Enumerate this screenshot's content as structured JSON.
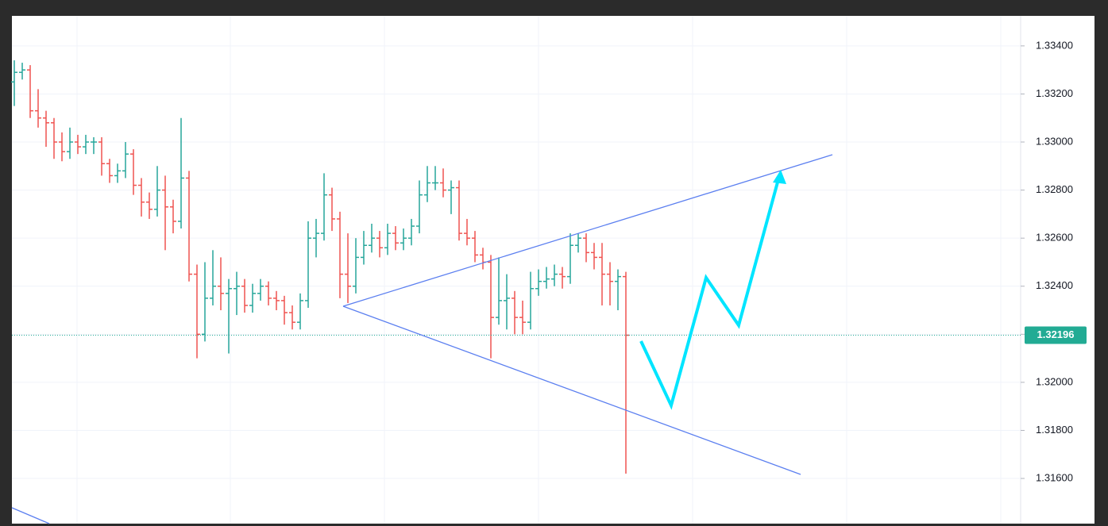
{
  "chart_data": {
    "type": "ohlc",
    "up_color": "#26a69a",
    "down_color": "#ef5350",
    "ylim": [
      1.31412,
      1.33525
    ],
    "yticks": [
      {
        "value": 1.316,
        "label": "1.31600"
      },
      {
        "value": 1.318,
        "label": "1.31800"
      },
      {
        "value": 1.32,
        "label": "1.32000"
      },
      {
        "value": 1.322,
        "label": "1.32200"
      },
      {
        "value": 1.324,
        "label": "1.32400"
      },
      {
        "value": 1.326,
        "label": "1.32600"
      },
      {
        "value": 1.328,
        "label": "1.32800"
      },
      {
        "value": 1.33,
        "label": "1.33000"
      },
      {
        "value": 1.332,
        "label": "1.33200"
      },
      {
        "value": 1.334,
        "label": "1.33400"
      }
    ],
    "grid": true,
    "last_price": 1.32196,
    "ohlc": [
      [
        1.3325,
        1.3334,
        1.3315,
        1.3329
      ],
      [
        1.3329,
        1.3333,
        1.3326,
        1.333
      ],
      [
        1.333,
        1.3332,
        1.331,
        1.3313
      ],
      [
        1.3313,
        1.3322,
        1.3306,
        1.331
      ],
      [
        1.331,
        1.3313,
        1.3298,
        1.3308
      ],
      [
        1.3308,
        1.331,
        1.3293,
        1.33
      ],
      [
        1.33,
        1.3304,
        1.3292,
        1.3296
      ],
      [
        1.3296,
        1.3306,
        1.3293,
        1.33
      ],
      [
        1.33,
        1.3303,
        1.3295,
        1.3298
      ],
      [
        1.3298,
        1.3303,
        1.3295,
        1.33
      ],
      [
        1.33,
        1.3302,
        1.3295,
        1.33
      ],
      [
        1.33,
        1.3302,
        1.3286,
        1.3291
      ],
      [
        1.3291,
        1.3293,
        1.3283,
        1.3286
      ],
      [
        1.3286,
        1.3291,
        1.3283,
        1.3288
      ],
      [
        1.3288,
        1.33,
        1.3285,
        1.3295
      ],
      [
        1.3295,
        1.3297,
        1.3278,
        1.3282
      ],
      [
        1.3282,
        1.3285,
        1.3269,
        1.3275
      ],
      [
        1.3275,
        1.3279,
        1.3268,
        1.3272
      ],
      [
        1.3272,
        1.329,
        1.3269,
        1.328
      ],
      [
        1.328,
        1.3286,
        1.3255,
        1.3273
      ],
      [
        1.3273,
        1.3276,
        1.3262,
        1.3267
      ],
      [
        1.3267,
        1.331,
        1.3264,
        1.3285
      ],
      [
        1.3285,
        1.3288,
        1.3242,
        1.3245
      ],
      [
        1.3245,
        1.3249,
        1.321,
        1.322
      ],
      [
        1.322,
        1.325,
        1.3217,
        1.3235
      ],
      [
        1.3235,
        1.3255,
        1.3232,
        1.324
      ],
      [
        1.324,
        1.3252,
        1.323,
        1.3237
      ],
      [
        1.3237,
        1.3243,
        1.3212,
        1.3239
      ],
      [
        1.3239,
        1.3246,
        1.3228,
        1.324
      ],
      [
        1.324,
        1.3243,
        1.3229,
        1.3232
      ],
      [
        1.3232,
        1.3241,
        1.3229,
        1.3237
      ],
      [
        1.3237,
        1.3243,
        1.3234,
        1.324
      ],
      [
        1.324,
        1.3242,
        1.3232,
        1.3235
      ],
      [
        1.3235,
        1.3238,
        1.323,
        1.3234
      ],
      [
        1.3234,
        1.3236,
        1.3224,
        1.3229
      ],
      [
        1.3229,
        1.3232,
        1.3222,
        1.3225
      ],
      [
        1.3225,
        1.3237,
        1.3222,
        1.3234
      ],
      [
        1.3234,
        1.3267,
        1.3231,
        1.326
      ],
      [
        1.326,
        1.3268,
        1.3252,
        1.3262
      ],
      [
        1.3262,
        1.3287,
        1.3259,
        1.3278
      ],
      [
        1.3278,
        1.3281,
        1.3263,
        1.3268
      ],
      [
        1.3268,
        1.3271,
        1.3235,
        1.3245
      ],
      [
        1.3245,
        1.3262,
        1.3233,
        1.324
      ],
      [
        1.324,
        1.326,
        1.3237,
        1.3252
      ],
      [
        1.3252,
        1.3263,
        1.3249,
        1.3257
      ],
      [
        1.3257,
        1.3266,
        1.3254,
        1.326
      ],
      [
        1.326,
        1.3263,
        1.3252,
        1.3256
      ],
      [
        1.3256,
        1.3266,
        1.3253,
        1.3262
      ],
      [
        1.3262,
        1.3265,
        1.3255,
        1.3258
      ],
      [
        1.3258,
        1.3264,
        1.3255,
        1.326
      ],
      [
        1.326,
        1.3268,
        1.3257,
        1.3265
      ],
      [
        1.3265,
        1.3284,
        1.3262,
        1.3278
      ],
      [
        1.3278,
        1.329,
        1.3275,
        1.3283
      ],
      [
        1.3283,
        1.329,
        1.328,
        1.3283
      ],
      [
        1.3283,
        1.3289,
        1.3277,
        1.328
      ],
      [
        1.328,
        1.3284,
        1.327,
        1.3281
      ],
      [
        1.3281,
        1.3284,
        1.3259,
        1.3262
      ],
      [
        1.3262,
        1.3268,
        1.3257,
        1.326
      ],
      [
        1.326,
        1.3263,
        1.325,
        1.3253
      ],
      [
        1.3253,
        1.3256,
        1.3247,
        1.325
      ],
      [
        1.325,
        1.3253,
        1.321,
        1.3227
      ],
      [
        1.3227,
        1.3252,
        1.3224,
        1.3234
      ],
      [
        1.3234,
        1.3245,
        1.3222,
        1.3235
      ],
      [
        1.3235,
        1.3238,
        1.322,
        1.3227
      ],
      [
        1.3227,
        1.3234,
        1.322,
        1.3225
      ],
      [
        1.3225,
        1.3246,
        1.3222,
        1.3239
      ],
      [
        1.3239,
        1.3247,
        1.3236,
        1.3242
      ],
      [
        1.3242,
        1.3248,
        1.3239,
        1.3243
      ],
      [
        1.3243,
        1.3249,
        1.324,
        1.3245
      ],
      [
        1.3245,
        1.3248,
        1.3239,
        1.3244
      ],
      [
        1.3244,
        1.3262,
        1.3241,
        1.3257
      ],
      [
        1.3257,
        1.3262,
        1.3254,
        1.326
      ],
      [
        1.326,
        1.3262,
        1.325,
        1.3254
      ],
      [
        1.3254,
        1.3258,
        1.3247,
        1.3252
      ],
      [
        1.3252,
        1.3258,
        1.3232,
        1.3245
      ],
      [
        1.3245,
        1.325,
        1.3232,
        1.3242
      ],
      [
        1.3242,
        1.3247,
        1.323,
        1.3244
      ],
      [
        1.3244,
        1.3246,
        1.3162,
        1.32196
      ]
    ]
  }
}
